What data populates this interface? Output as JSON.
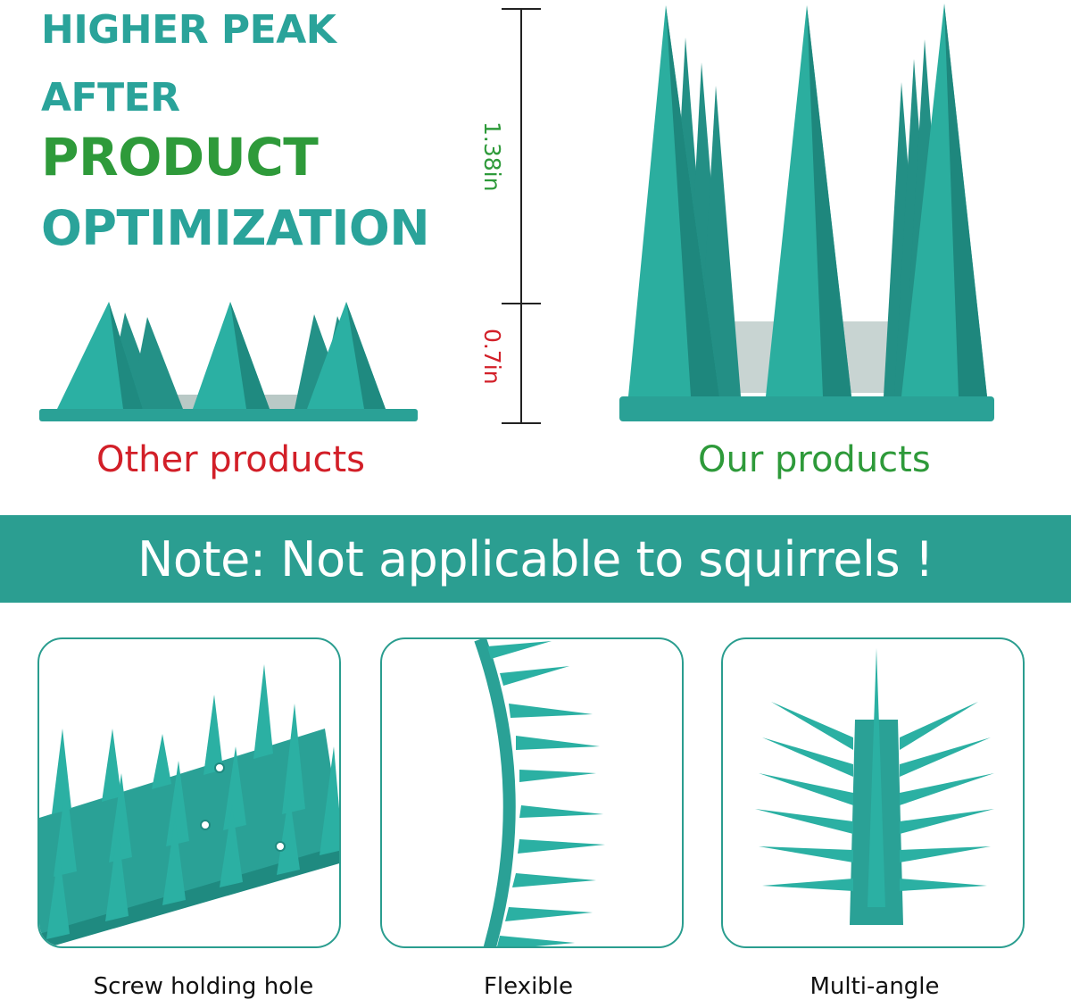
{
  "headline": {
    "line1": "HIGHER PEAK",
    "line2": "AFTER",
    "line3": "PRODUCT",
    "line4": "OPTIMIZATION"
  },
  "dimensions": {
    "tall": "1.38in",
    "short": "0.7in"
  },
  "comparison": {
    "other_label": "Other products",
    "our_label": "Our products"
  },
  "note": {
    "text": "Note: Not applicable to squirrels !"
  },
  "features": [
    {
      "label": "Screw holding hole"
    },
    {
      "label": "Flexible"
    },
    {
      "label": "Multi-angle"
    }
  ],
  "colors": {
    "teal": "#2aa39a",
    "green": "#2e9a3a",
    "red": "#d21f28",
    "band": "#2b9e91"
  }
}
